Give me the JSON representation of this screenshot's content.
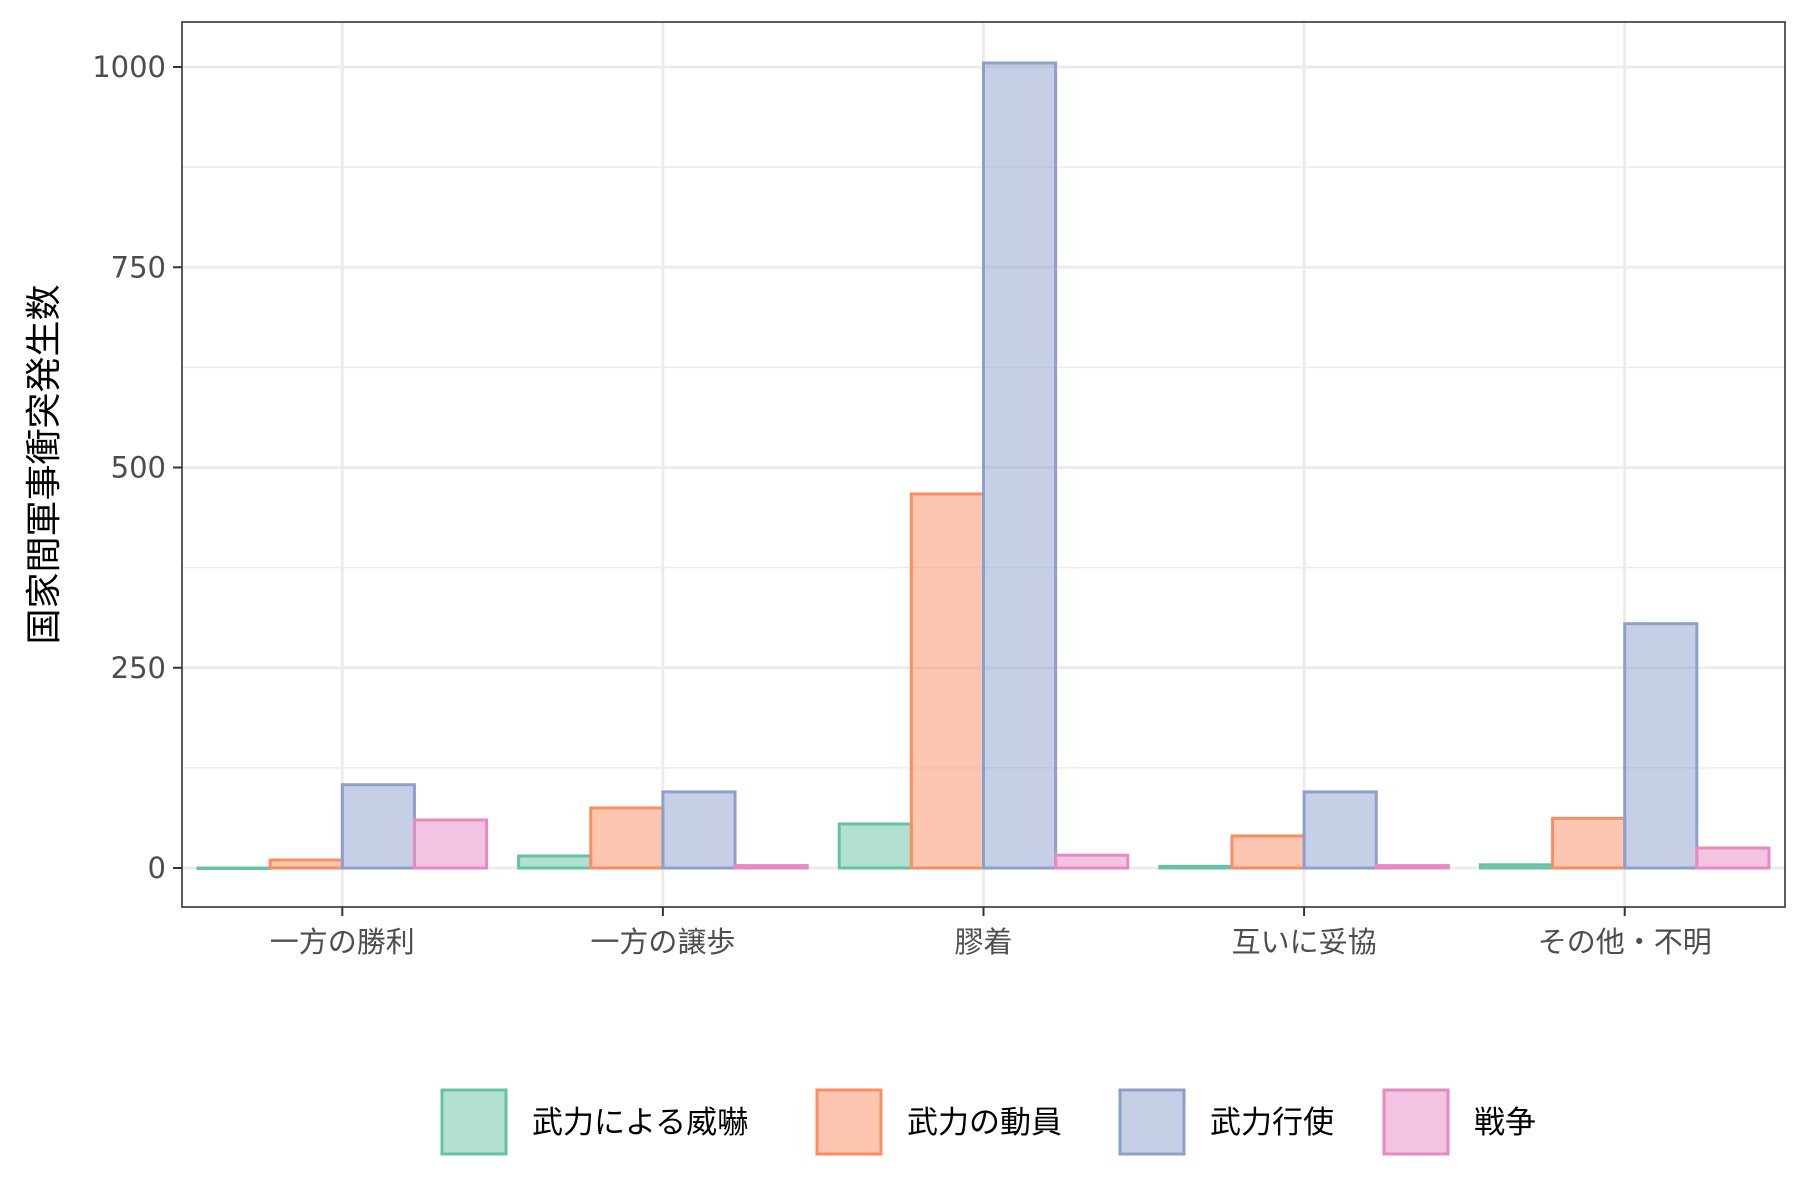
{
  "chart_data": {
    "type": "bar",
    "title": "",
    "xlabel": "",
    "ylabel": "国家間軍事衝突発生数",
    "categories": [
      "一方の勝利",
      "一方の譲歩",
      "膠着",
      "互いに妥協",
      "その他・不明"
    ],
    "series": [
      {
        "name": "武力による威嚇",
        "values": [
          0,
          15,
          55,
          2,
          4
        ],
        "color": "#66c2a5"
      },
      {
        "name": "武力の動員",
        "values": [
          10,
          75,
          467,
          40,
          62
        ],
        "color": "#fc8d62"
      },
      {
        "name": "武力行使",
        "values": [
          104,
          95,
          1005,
          95,
          305
        ],
        "color": "#8da0cb"
      },
      {
        "name": "戦争",
        "values": [
          60,
          3,
          16,
          3,
          25
        ],
        "color": "#e78ac3"
      }
    ],
    "ylim": [
      -50,
      1060
    ],
    "yticks": [
      0,
      250,
      500,
      750,
      1000
    ],
    "grid": true,
    "legend_position": "bottom"
  }
}
